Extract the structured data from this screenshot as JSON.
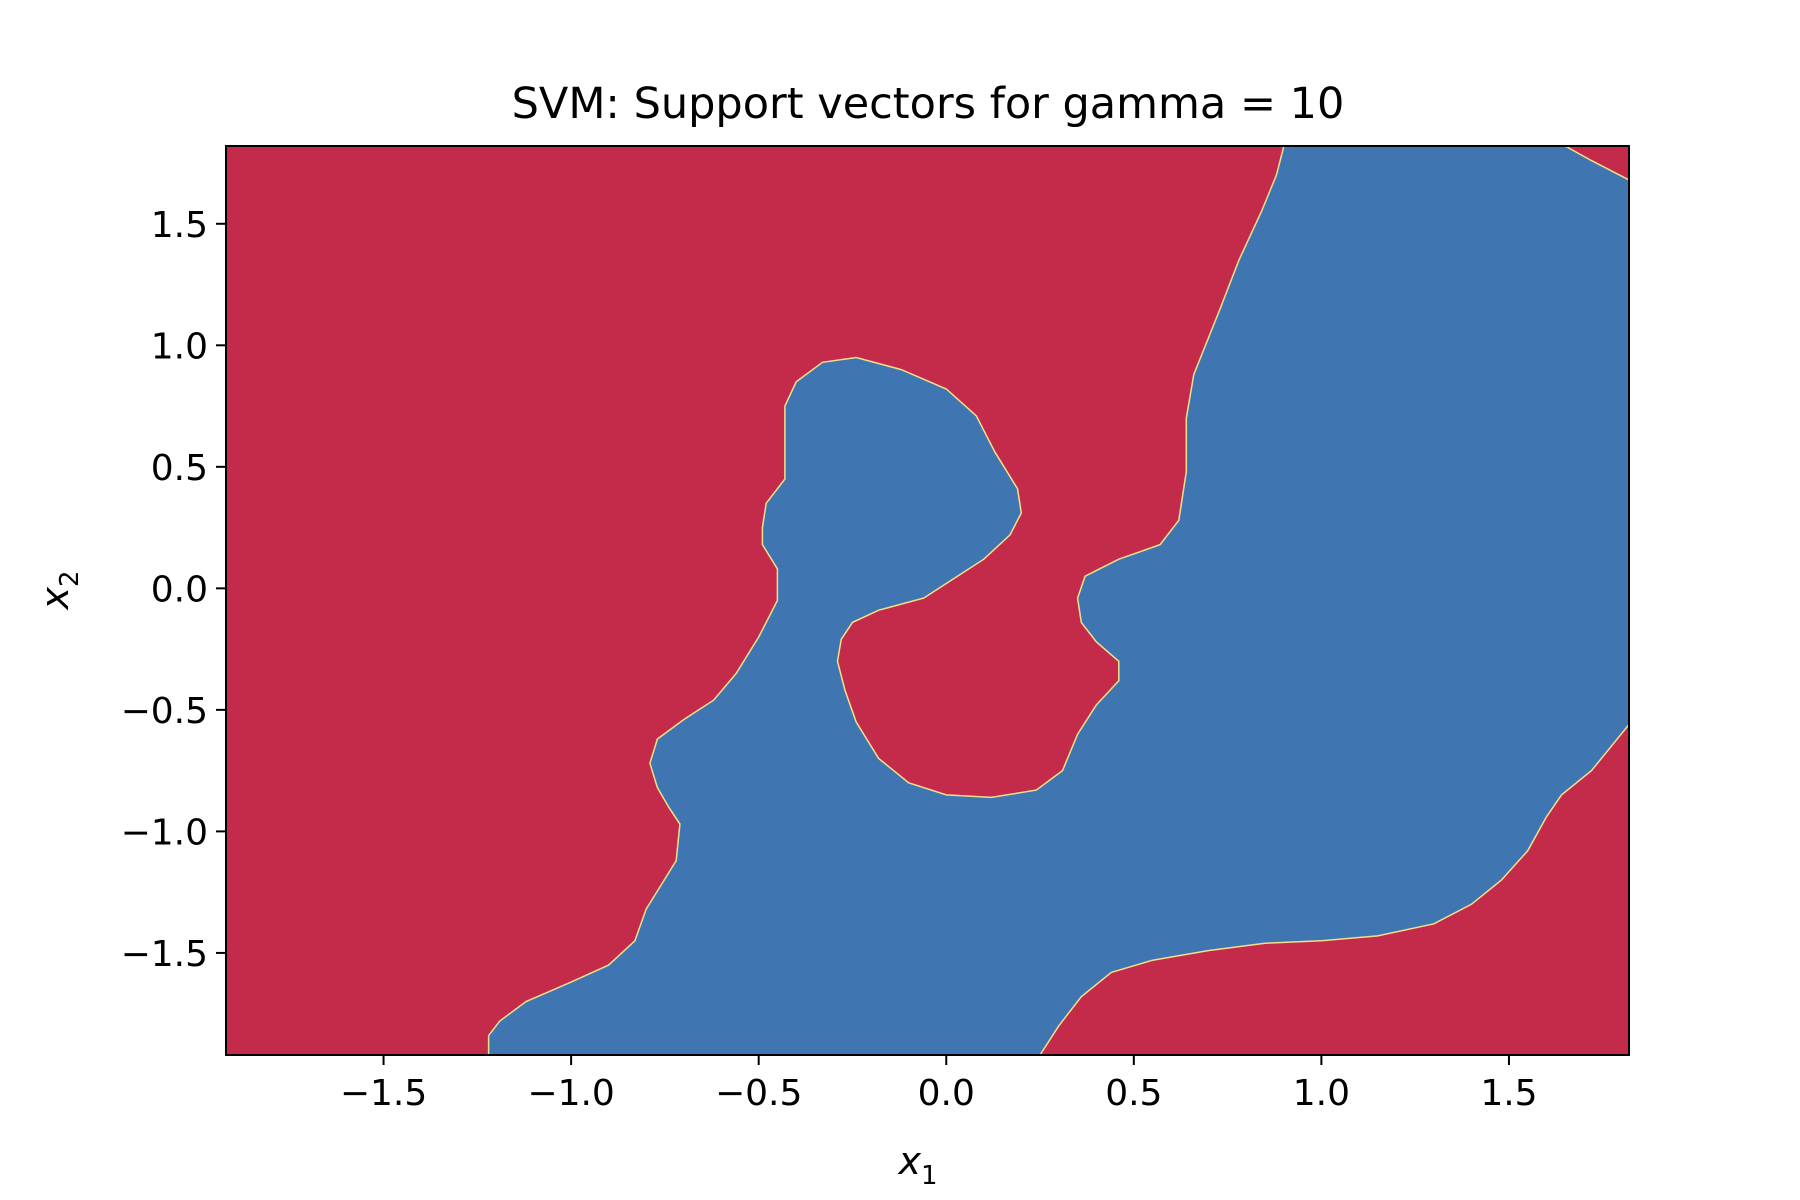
{
  "chart_data": {
    "type": "heatmap",
    "title": "SVM: Support vectors for gamma = 10",
    "xlabel": "x",
    "xlabel_sub": "1",
    "ylabel": "x",
    "ylabel_sub": "2",
    "xlim": [
      -1.92,
      1.82
    ],
    "ylim": [
      -1.92,
      1.82
    ],
    "xticks": [
      -1.5,
      -1.0,
      -0.5,
      0.0,
      0.5,
      1.0,
      1.5
    ],
    "xtick_labels": [
      "−1.5",
      "−1.0",
      "−0.5",
      "0.0",
      "0.5",
      "1.0",
      "1.5"
    ],
    "yticks": [
      -1.5,
      -1.0,
      -0.5,
      0.0,
      0.5,
      1.0,
      1.5
    ],
    "ytick_labels": [
      "−1.5",
      "−1.0",
      "−0.5",
      "0.0",
      "0.5",
      "1.0",
      "1.5"
    ],
    "grid": false,
    "colors": {
      "class_negative": "#c42b4a",
      "class_positive": "#3f76b2",
      "boundary": "#f2e08a"
    },
    "regions": [
      {
        "class": "positive",
        "outline": [
          [
            -1.22,
            -1.92
          ],
          [
            -1.22,
            -1.84
          ],
          [
            -1.19,
            -1.78
          ],
          [
            -1.12,
            -1.7
          ],
          [
            -1.0,
            -1.62
          ],
          [
            -0.9,
            -1.55
          ],
          [
            -0.83,
            -1.45
          ],
          [
            -0.8,
            -1.32
          ],
          [
            -0.76,
            -1.22
          ],
          [
            -0.72,
            -1.12
          ],
          [
            -0.71,
            -0.97
          ],
          [
            -0.74,
            -0.9
          ],
          [
            -0.77,
            -0.82
          ],
          [
            -0.79,
            -0.72
          ],
          [
            -0.77,
            -0.62
          ],
          [
            -0.7,
            -0.54
          ],
          [
            -0.62,
            -0.46
          ],
          [
            -0.56,
            -0.35
          ],
          [
            -0.5,
            -0.2
          ],
          [
            -0.45,
            -0.05
          ],
          [
            -0.45,
            0.08
          ],
          [
            -0.49,
            0.18
          ],
          [
            -0.49,
            0.25
          ],
          [
            -0.48,
            0.35
          ],
          [
            -0.43,
            0.45
          ],
          [
            -0.43,
            0.62
          ],
          [
            -0.43,
            0.75
          ],
          [
            -0.4,
            0.85
          ],
          [
            -0.33,
            0.93
          ],
          [
            -0.24,
            0.95
          ],
          [
            -0.12,
            0.9
          ],
          [
            0.0,
            0.82
          ],
          [
            0.08,
            0.71
          ],
          [
            0.13,
            0.56
          ],
          [
            0.19,
            0.41
          ],
          [
            0.2,
            0.31
          ],
          [
            0.17,
            0.22
          ],
          [
            0.1,
            0.12
          ],
          [
            0.02,
            0.04
          ],
          [
            -0.06,
            -0.04
          ],
          [
            -0.18,
            -0.09
          ],
          [
            -0.25,
            -0.14
          ],
          [
            -0.28,
            -0.21
          ],
          [
            -0.29,
            -0.3
          ],
          [
            -0.27,
            -0.42
          ],
          [
            -0.24,
            -0.55
          ],
          [
            -0.18,
            -0.7
          ],
          [
            -0.1,
            -0.8
          ],
          [
            0.0,
            -0.85
          ],
          [
            0.12,
            -0.86
          ],
          [
            0.24,
            -0.83
          ],
          [
            0.31,
            -0.75
          ],
          [
            0.35,
            -0.6
          ],
          [
            0.4,
            -0.48
          ],
          [
            0.46,
            -0.38
          ],
          [
            0.46,
            -0.3
          ],
          [
            0.4,
            -0.22
          ],
          [
            0.36,
            -0.14
          ],
          [
            0.35,
            -0.04
          ],
          [
            0.37,
            0.05
          ],
          [
            0.46,
            0.12
          ],
          [
            0.57,
            0.18
          ],
          [
            0.62,
            0.28
          ],
          [
            0.64,
            0.48
          ],
          [
            0.64,
            0.7
          ],
          [
            0.66,
            0.88
          ],
          [
            0.73,
            1.15
          ],
          [
            0.78,
            1.35
          ],
          [
            0.84,
            1.55
          ],
          [
            0.88,
            1.7
          ],
          [
            0.9,
            1.82
          ],
          [
            1.65,
            1.82
          ],
          [
            1.72,
            1.76
          ],
          [
            1.82,
            1.68
          ],
          [
            1.82,
            -0.56
          ],
          [
            1.72,
            -0.75
          ],
          [
            1.64,
            -0.85
          ],
          [
            1.6,
            -0.94
          ],
          [
            1.55,
            -1.08
          ],
          [
            1.48,
            -1.2
          ],
          [
            1.4,
            -1.3
          ],
          [
            1.3,
            -1.38
          ],
          [
            1.15,
            -1.43
          ],
          [
            1.0,
            -1.45
          ],
          [
            0.85,
            -1.46
          ],
          [
            0.7,
            -1.49
          ],
          [
            0.55,
            -1.53
          ],
          [
            0.44,
            -1.58
          ],
          [
            0.36,
            -1.68
          ],
          [
            0.3,
            -1.8
          ],
          [
            0.25,
            -1.92
          ]
        ]
      }
    ]
  }
}
